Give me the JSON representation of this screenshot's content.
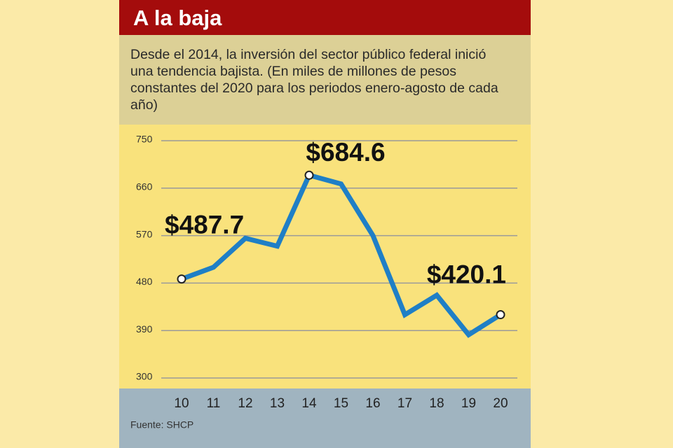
{
  "chart_data": {
    "type": "line",
    "title": "A la baja",
    "subtitle": "Desde el 2014, la inversión del sector público federal inició una tendencia bajista. (En miles de millones de pesos constantes del 2020 para los periodos enero-agosto de cada año)",
    "source": "Fuente: SHCP",
    "categories": [
      "10",
      "11",
      "12",
      "13",
      "14",
      "15",
      "16",
      "17",
      "18",
      "19",
      "20"
    ],
    "values": [
      487.7,
      510,
      565,
      550,
      684.6,
      668,
      570,
      420,
      457,
      382,
      420.1
    ],
    "value_labels": [
      "$487.7",
      null,
      null,
      null,
      "$684.6",
      null,
      null,
      null,
      null,
      null,
      "$420.1"
    ],
    "color": "#1f7fc6",
    "ylim": [
      300,
      750
    ],
    "yticks": [
      300,
      390,
      480,
      570,
      660,
      750
    ],
    "grid": true
  }
}
